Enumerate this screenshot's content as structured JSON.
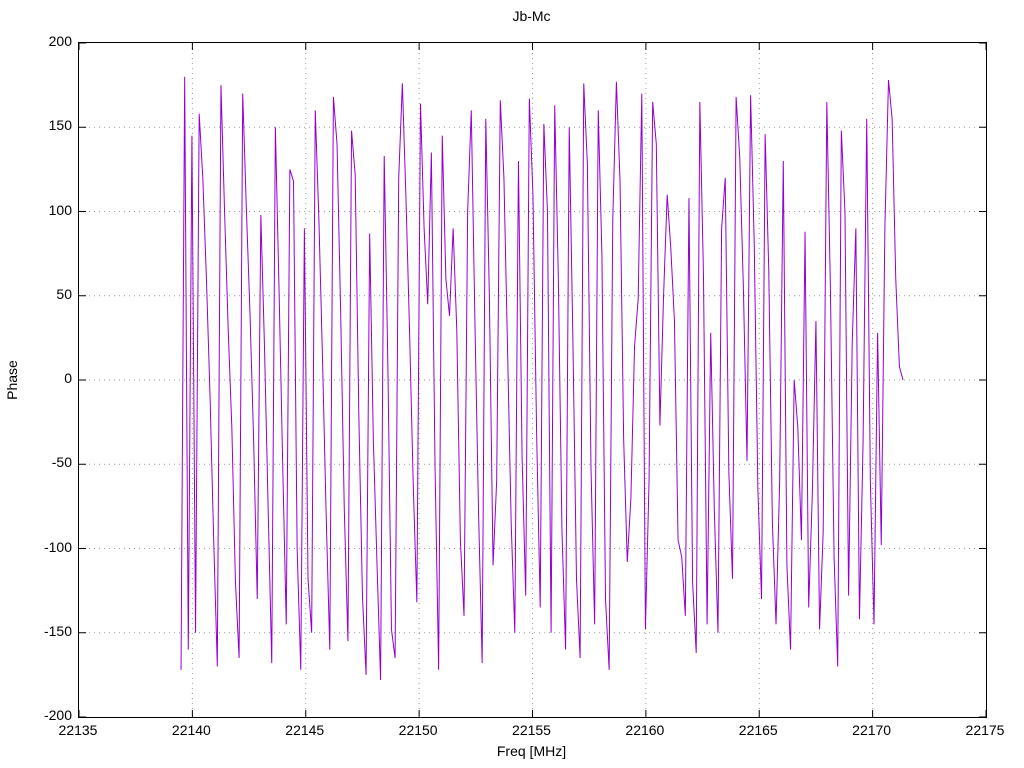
{
  "chart_data": {
    "type": "line",
    "title": "Jb-Mc",
    "xlabel": "Freq [MHz]",
    "ylabel": "Phase",
    "xlim": [
      22135,
      22175
    ],
    "ylim": [
      -200,
      200
    ],
    "xticks": [
      22135,
      22140,
      22145,
      22150,
      22155,
      22160,
      22165,
      22170,
      22175
    ],
    "yticks": [
      -200,
      -150,
      -100,
      -50,
      0,
      50,
      100,
      150,
      200
    ],
    "grid": true,
    "legend": "none",
    "line_color": "#9400D3",
    "grid_color": "#999999",
    "border_color": "#000000",
    "series": [
      {
        "name": "phase",
        "x_start": 22139.5,
        "x_step": 0.16,
        "values": [
          -172,
          180,
          -160,
          145,
          -150,
          158,
          120,
          60,
          -10,
          -95,
          -170,
          175,
          100,
          30,
          -28,
          -120,
          -165,
          170,
          102,
          40,
          -35,
          -130,
          98,
          20,
          -75,
          -168,
          150,
          55,
          -48,
          -145,
          125,
          118,
          -100,
          -172,
          90,
          -118,
          -150,
          160,
          95,
          12,
          -80,
          -160,
          168,
          140,
          40,
          -77,
          -155,
          148,
          122,
          -20,
          -128,
          -175,
          87,
          -35,
          -108,
          -178,
          133,
          10,
          -148,
          -165,
          120,
          176,
          108,
          28,
          -62,
          -132,
          164,
          90,
          45,
          135,
          -50,
          -172,
          145,
          60,
          38,
          90,
          30,
          -95,
          -140,
          100,
          160,
          35,
          -78,
          -168,
          155,
          48,
          -110,
          -60,
          166,
          120,
          18,
          -85,
          -150,
          130,
          -45,
          -128,
          167,
          110,
          -30,
          -135,
          152,
          100,
          -150,
          163,
          60,
          -90,
          -160,
          150,
          25,
          -118,
          -165,
          176,
          128,
          -52,
          -145,
          160,
          75,
          -130,
          -172,
          95,
          177,
          118,
          -35,
          -108,
          -70,
          20,
          48,
          170,
          -148,
          -60,
          165,
          140,
          -27,
          50,
          110,
          78,
          35,
          -95,
          -105,
          -140,
          108,
          -120,
          -162,
          165,
          62,
          -145,
          28,
          -78,
          -150,
          90,
          120,
          -55,
          -118,
          168,
          132,
          55,
          -48,
          169,
          80,
          -65,
          -130,
          146,
          65,
          -85,
          -145,
          -60,
          130,
          -110,
          -160,
          0,
          -28,
          -95,
          88,
          -135,
          -68,
          35,
          -148,
          -90,
          165,
          53,
          -105,
          -170,
          148,
          100,
          -128,
          22,
          90,
          -142,
          -36,
          155,
          -60,
          -145,
          28,
          -98,
          90,
          178,
          155,
          60,
          8,
          0
        ]
      }
    ]
  }
}
